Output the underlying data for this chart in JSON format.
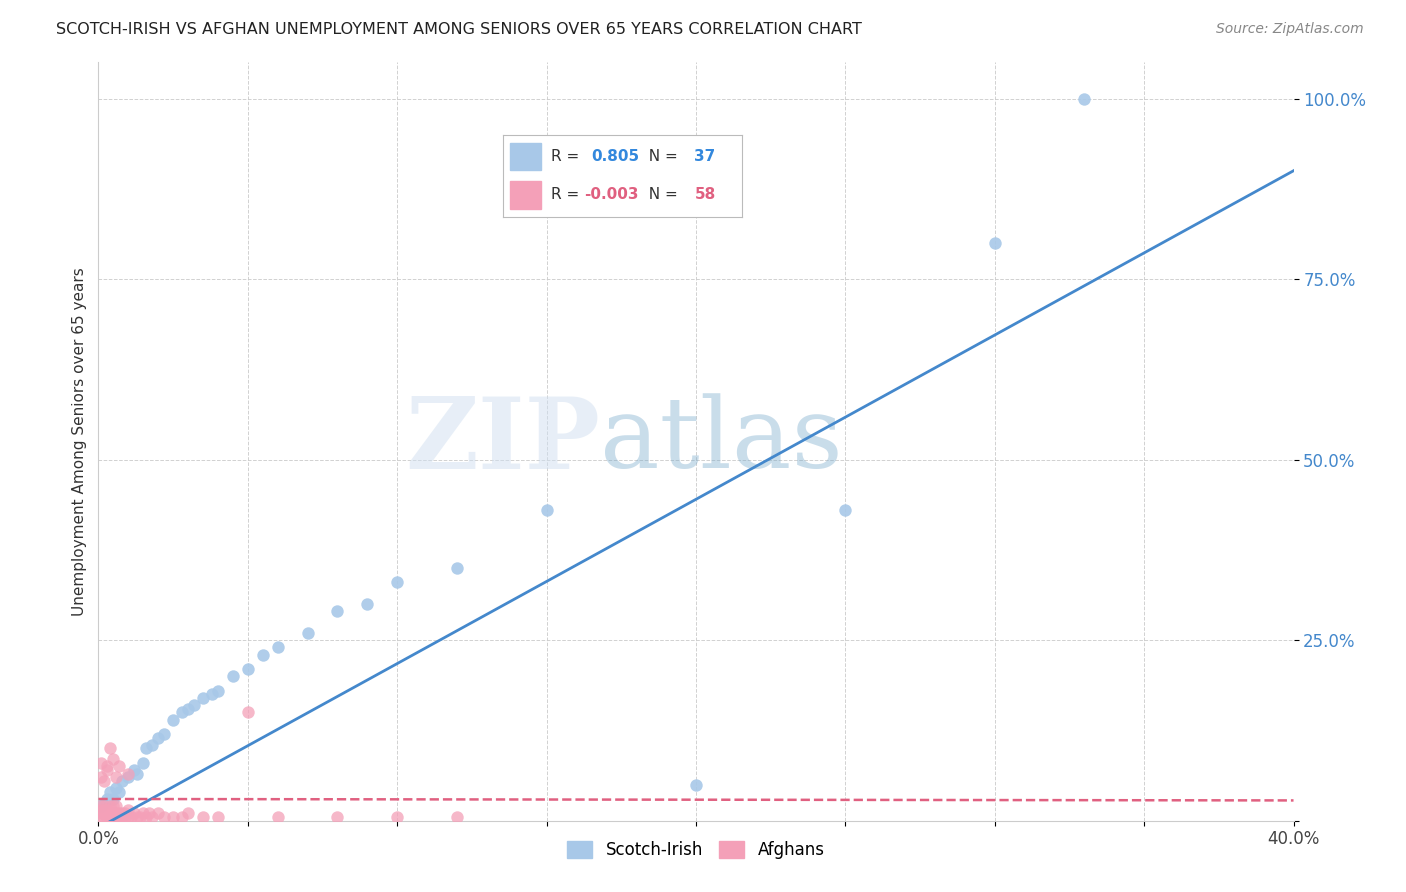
{
  "title": "SCOTCH-IRISH VS AFGHAN UNEMPLOYMENT AMONG SENIORS OVER 65 YEARS CORRELATION CHART",
  "source": "Source: ZipAtlas.com",
  "ylabel": "Unemployment Among Seniors over 65 years",
  "watermark_zip": "ZIP",
  "watermark_atlas": "atlas",
  "scotch_irish_R": 0.805,
  "scotch_irish_N": 37,
  "afghan_R": -0.003,
  "afghan_N": 58,
  "scotch_irish_color": "#A8C8E8",
  "afghan_color": "#F4A0B8",
  "scotch_irish_line_color": "#4488CC",
  "afghan_line_color": "#E06080",
  "background_color": "#FFFFFF",
  "grid_color": "#CCCCCC",
  "ytick_color": "#4488CC",
  "title_color": "#222222",
  "source_color": "#888888",
  "scotch_irish_x": [
    0.001,
    0.002,
    0.003,
    0.004,
    0.005,
    0.006,
    0.007,
    0.008,
    0.01,
    0.012,
    0.013,
    0.015,
    0.016,
    0.018,
    0.02,
    0.022,
    0.025,
    0.028,
    0.03,
    0.032,
    0.035,
    0.038,
    0.04,
    0.045,
    0.05,
    0.055,
    0.06,
    0.07,
    0.08,
    0.09,
    0.1,
    0.12,
    0.15,
    0.2,
    0.25,
    0.3,
    0.33
  ],
  "scotch_irish_y": [
    0.02,
    0.025,
    0.03,
    0.04,
    0.03,
    0.045,
    0.04,
    0.055,
    0.06,
    0.07,
    0.065,
    0.08,
    0.1,
    0.105,
    0.115,
    0.12,
    0.14,
    0.15,
    0.155,
    0.16,
    0.17,
    0.175,
    0.18,
    0.2,
    0.21,
    0.23,
    0.24,
    0.26,
    0.29,
    0.3,
    0.33,
    0.35,
    0.43,
    0.05,
    0.43,
    0.8,
    1.0
  ],
  "afghan_x": [
    0.001,
    0.001,
    0.001,
    0.001,
    0.002,
    0.002,
    0.002,
    0.002,
    0.003,
    0.003,
    0.003,
    0.004,
    0.004,
    0.004,
    0.005,
    0.005,
    0.005,
    0.006,
    0.006,
    0.006,
    0.007,
    0.007,
    0.008,
    0.008,
    0.009,
    0.009,
    0.01,
    0.01,
    0.011,
    0.012,
    0.013,
    0.014,
    0.015,
    0.016,
    0.017,
    0.018,
    0.02,
    0.022,
    0.025,
    0.028,
    0.03,
    0.035,
    0.04,
    0.05,
    0.06,
    0.08,
    0.1,
    0.12,
    0.001,
    0.001,
    0.002,
    0.003,
    0.003,
    0.004,
    0.005,
    0.006,
    0.007,
    0.01
  ],
  "afghan_y": [
    0.005,
    0.01,
    0.015,
    0.02,
    0.005,
    0.01,
    0.015,
    0.02,
    0.005,
    0.01,
    0.015,
    0.005,
    0.01,
    0.02,
    0.005,
    0.01,
    0.02,
    0.005,
    0.01,
    0.02,
    0.005,
    0.01,
    0.005,
    0.01,
    0.005,
    0.01,
    0.005,
    0.015,
    0.005,
    0.01,
    0.005,
    0.005,
    0.01,
    0.005,
    0.01,
    0.005,
    0.01,
    0.005,
    0.005,
    0.005,
    0.01,
    0.005,
    0.005,
    0.15,
    0.005,
    0.005,
    0.005,
    0.005,
    0.06,
    0.08,
    0.055,
    0.07,
    0.075,
    0.1,
    0.085,
    0.06,
    0.075,
    0.065
  ],
  "si_line_x0": 0.0,
  "si_line_y0": -0.01,
  "si_line_x1": 0.4,
  "si_line_y1": 0.9,
  "af_line_x0": 0.0,
  "af_line_y0": 0.03,
  "af_line_x1": 0.4,
  "af_line_y1": 0.028,
  "xlim": [
    0.0,
    0.4
  ],
  "ylim": [
    0.0,
    1.05
  ],
  "yticks": [
    0.0,
    0.25,
    0.5,
    0.75,
    1.0
  ],
  "ytick_labels": [
    "",
    "25.0%",
    "50.0%",
    "75.0%",
    "100.0%"
  ],
  "xticks": [
    0.0,
    0.05,
    0.1,
    0.15,
    0.2,
    0.25,
    0.3,
    0.35,
    0.4
  ],
  "xtick_labels": [
    "0.0%",
    "",
    "",
    "",
    "",
    "",
    "",
    "",
    "40.0%"
  ],
  "legend_label_si": "Scotch-Irish",
  "legend_label_af": "Afghans"
}
